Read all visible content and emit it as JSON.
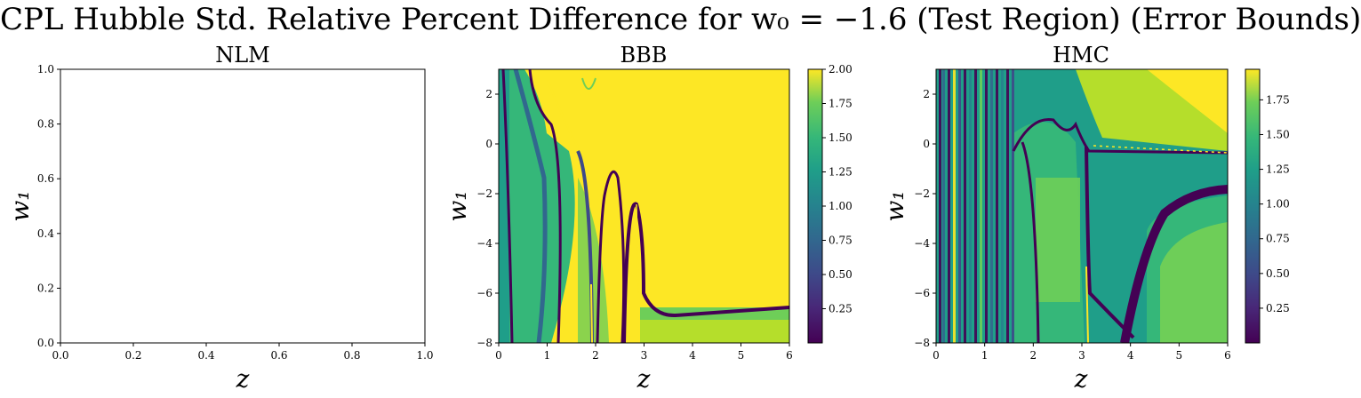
{
  "suptitle": "CPL Hubble Std. Relative Percent Difference for w₀ = −1.6 (Test Region) (Error Bounds)",
  "chart_data": [
    {
      "type": "heatmap",
      "title": "NLM",
      "xlabel": "z",
      "ylabel": "w₁",
      "xlim": [
        0.0,
        1.0
      ],
      "ylim": [
        0.0,
        1.0
      ],
      "xticks": [
        "0.0",
        "0.2",
        "0.4",
        "0.6",
        "0.8",
        "1.0"
      ],
      "yticks": [
        "0.0",
        "0.2",
        "0.4",
        "0.6",
        "0.8",
        "1.0"
      ],
      "empty": true
    },
    {
      "type": "heatmap",
      "title": "BBB",
      "xlabel": "z",
      "ylabel": "w₁",
      "xlim": [
        0,
        6
      ],
      "ylim": [
        -8,
        3
      ],
      "xticks": [
        "0",
        "1",
        "2",
        "3",
        "4",
        "5",
        "6"
      ],
      "yticks": [
        "−8",
        "−6",
        "−4",
        "−2",
        "0",
        "2"
      ],
      "colormap": "viridis",
      "colorbar_range": [
        0.0,
        2.0
      ],
      "colorbar_ticks": [
        "0.25",
        "0.50",
        "0.75",
        "1.00",
        "1.25",
        "1.50",
        "1.75",
        "2.00"
      ],
      "description": "Values mostly saturated near 2.0 for z > 3 above w1 ≈ −6.5; low-value curves near z ≈ 0.1–0.9, 1.6, 2.2, 2.8 and a horizontal low band near w1 ≈ −6.6 for z > 3"
    },
    {
      "type": "heatmap",
      "title": "HMC",
      "xlabel": "z",
      "ylabel": "w₁",
      "xlim": [
        0,
        6
      ],
      "ylim": [
        -8,
        3
      ],
      "xticks": [
        "0",
        "1",
        "2",
        "3",
        "4",
        "5",
        "6"
      ],
      "yticks": [
        "−8",
        "−6",
        "−4",
        "−2",
        "0",
        "2"
      ],
      "colormap": "viridis",
      "colorbar_range": [
        0.0,
        1.97
      ],
      "colorbar_ticks": [
        "0.25",
        "0.50",
        "0.75",
        "1.00",
        "1.25",
        "1.50",
        "1.75"
      ],
      "description": "Many vertical low-value stripes for z < 1.5; low-value curve along w1 ≈ 0 to −0.3 for z > 3; low band descending from (3.1,−6) to (4,−7.5) and rising to w1 ≈ −2 at z = 6"
    }
  ]
}
